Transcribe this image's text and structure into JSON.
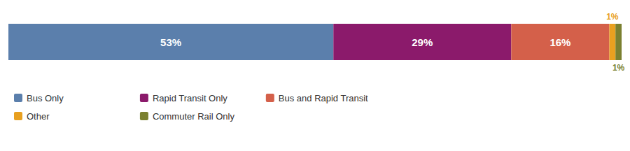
{
  "chart_data": {
    "type": "bar",
    "orientation": "horizontal",
    "stacked": true,
    "data_labels": true,
    "tick_labels": false,
    "legend": "bottom",
    "categories": [
      null
    ],
    "xlim": [
      0,
      100
    ],
    "series": [
      {
        "name": "Bus Only",
        "color": "#5b7fac",
        "values": [
          53
        ],
        "value_labels": [
          "53%"
        ]
      },
      {
        "name": "Rapid Transit Only",
        "color": "#8b1a6b",
        "values": [
          29
        ],
        "value_labels": [
          "29%"
        ]
      },
      {
        "name": "Bus and Rapid Transit",
        "color": "#d4604a",
        "values": [
          16
        ],
        "value_labels": [
          "16%"
        ]
      },
      {
        "name": "Other",
        "color": "#e8a020",
        "values": [
          1
        ],
        "value_labels": [
          "1%"
        ]
      },
      {
        "name": "Commuter Rail Only",
        "color": "#7a8030",
        "values": [
          1
        ],
        "value_labels": [
          "1%"
        ]
      }
    ]
  }
}
